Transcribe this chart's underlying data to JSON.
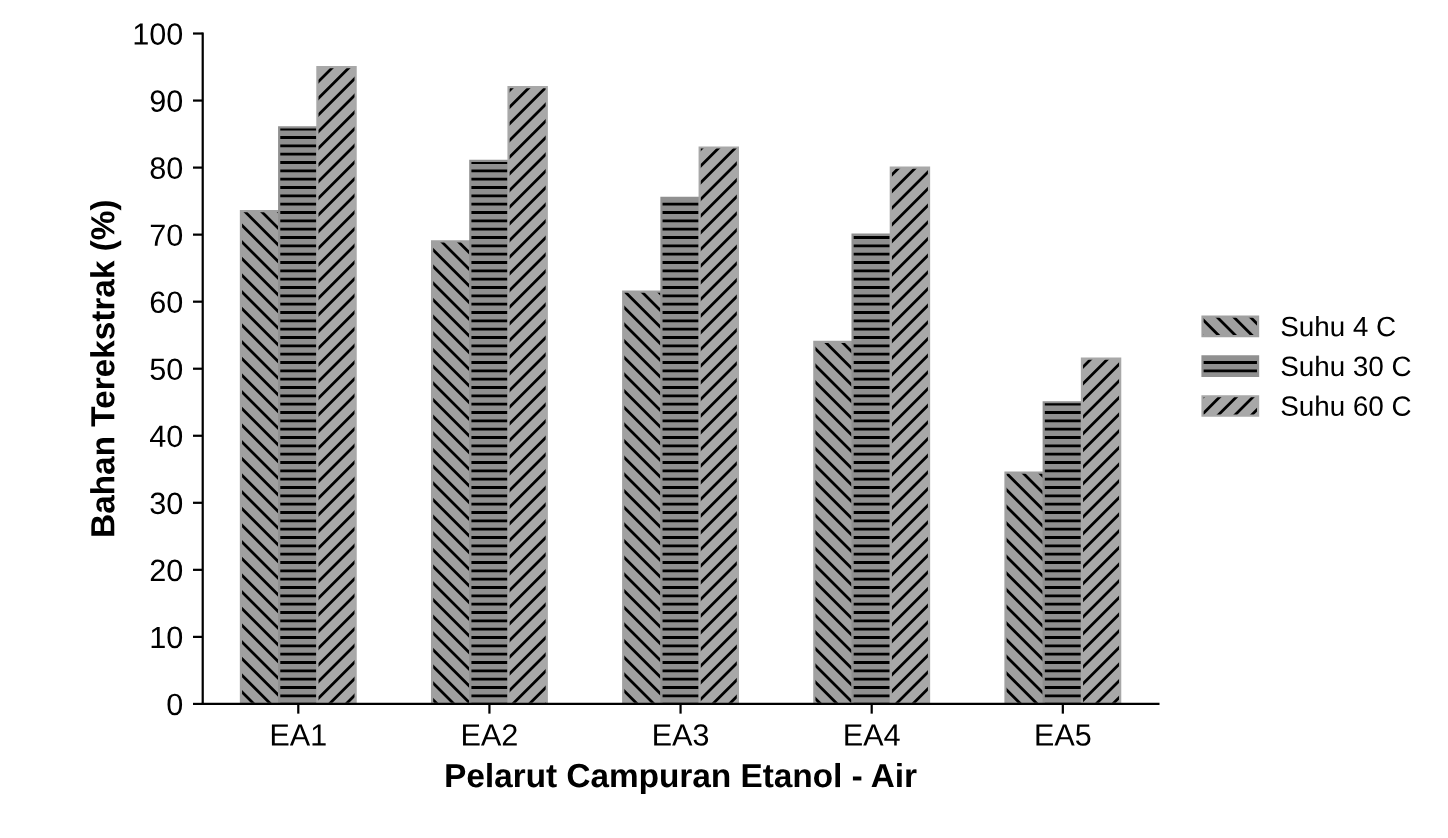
{
  "chart_data": {
    "type": "bar",
    "xlabel": "Pelarut Campuran Etanol - Air",
    "ylabel": "Bahan Terekstrak (%)",
    "categories": [
      "EA1",
      "EA2",
      "EA3",
      "EA4",
      "EA5"
    ],
    "series": [
      {
        "name": "Suhu 4 C",
        "color": "#a0a0a0",
        "values": [
          73.5,
          69,
          61.5,
          54,
          34.5
        ]
      },
      {
        "name": "Suhu 30 C",
        "color": "#909090",
        "values": [
          86,
          81,
          75.5,
          70,
          45
        ]
      },
      {
        "name": "Suhu 60 C",
        "color": "#a8a8a8",
        "values": [
          95,
          92,
          83,
          80,
          51.5
        ]
      }
    ],
    "ylim": [
      0,
      100
    ],
    "yticks": [
      0,
      10,
      20,
      30,
      40,
      50,
      60,
      70,
      80,
      90,
      100
    ],
    "grid": false,
    "legend": "right"
  }
}
